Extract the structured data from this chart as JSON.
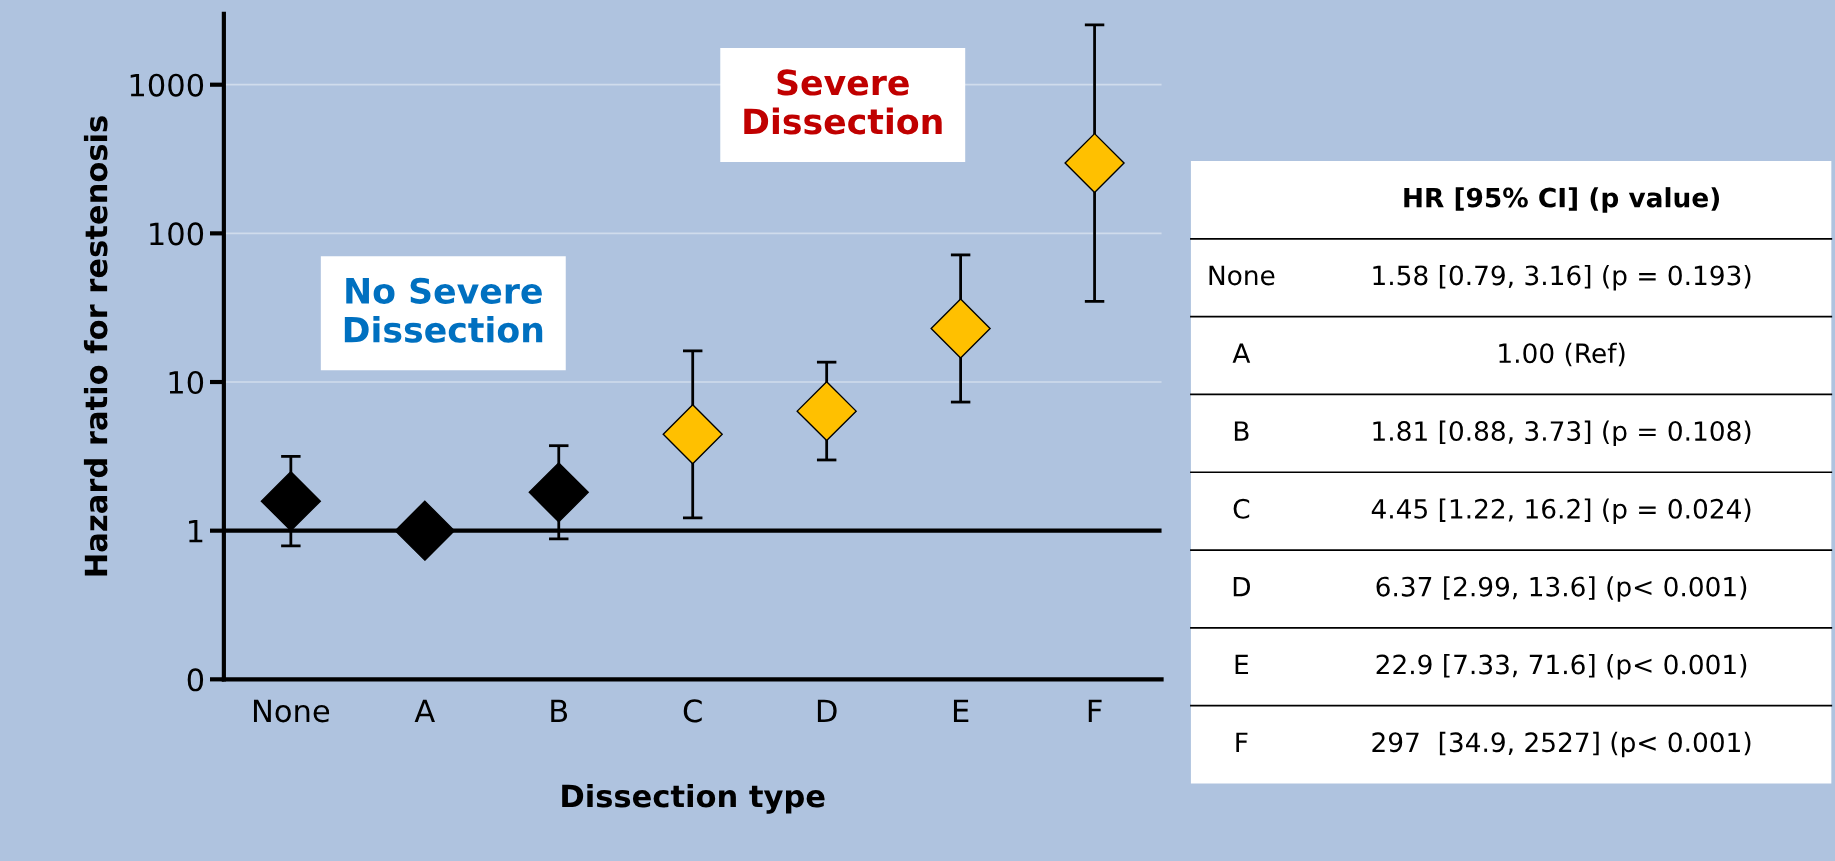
{
  "chart_data": {
    "type": "scatter",
    "xlabel": "Dissection type",
    "ylabel": "Hazard ratio for restenosis",
    "categories": [
      "None",
      "A",
      "B",
      "C",
      "D",
      "E",
      "F"
    ],
    "values": [
      1.58,
      1.0,
      1.81,
      4.45,
      6.37,
      22.9,
      297
    ],
    "errors": [
      [
        0.79,
        3.16
      ],
      null,
      [
        0.88,
        3.73
      ],
      [
        1.22,
        16.2
      ],
      [
        2.99,
        13.6
      ],
      [
        7.33,
        71.6
      ],
      [
        34.9,
        2527
      ]
    ],
    "colors": [
      "#000000",
      "#000000",
      "#000000",
      "#ffc000",
      "#ffc000",
      "#ffc000",
      "#ffc000"
    ],
    "marker": "diamond",
    "log": true,
    "ylim": [
      0.1,
      3000
    ],
    "yticks": [
      {
        "value": 0.1,
        "label": "0"
      },
      1,
      10,
      100,
      1000
    ],
    "grid": "y",
    "ref_lines": [
      {
        "axis": "y",
        "value": 1,
        "color": "#000000"
      }
    ],
    "annotations": [
      "No Severe\nDissection",
      "Severe\nDissection",
      "HR [95% CI] (p value)",
      "1.58 [0.79, 3.16] (p = 0.193)",
      "1.00 (Ref)",
      "1.81 [0.88, 3.73] (p = 0.108)",
      "4.45 [1.22, 16.2] (p = 0.024)",
      "6.37 [2.99, 13.6] (p< 0.001)",
      "22.9 [7.33, 71.6] (p< 0.001)",
      "297  [34.9, 2527] (p< 0.001)"
    ]
  }
}
